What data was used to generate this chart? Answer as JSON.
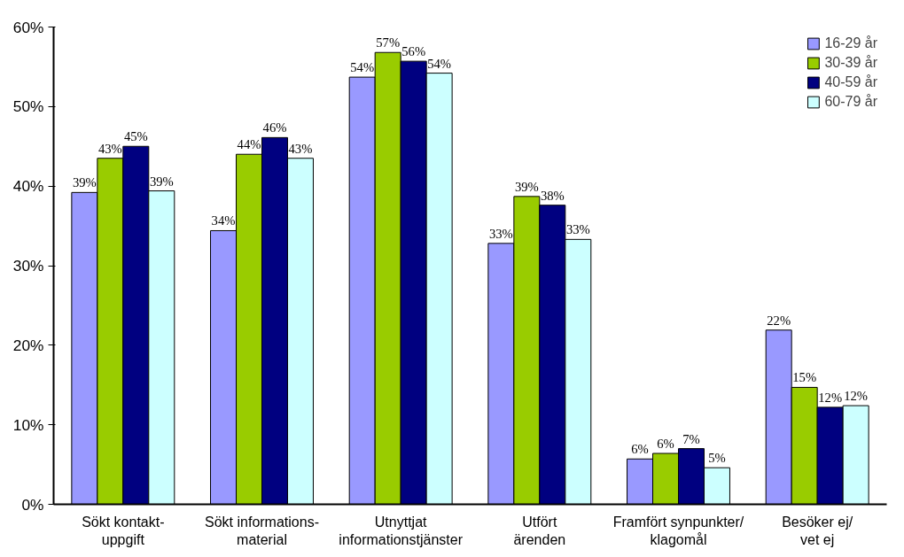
{
  "chart_data": {
    "type": "bar",
    "categories": [
      "Sökt kontakt-\nuppgift",
      "Sökt informations-\nmaterial",
      "Utnyttjat\ninformationstjänster",
      "Utfört\närenden",
      "Framfört synpunkter/\nklagomål",
      "Besöker ej/\nvet ej"
    ],
    "series": [
      {
        "name": "16-29 år",
        "color": "#9999ff",
        "values": [
          39.2,
          34.4,
          53.7,
          32.8,
          5.7,
          21.9
        ],
        "value_labels": [
          "39%",
          "34%",
          "54%",
          "33%",
          "6%",
          "22%"
        ]
      },
      {
        "name": "30-39 år",
        "color": "#99cc00",
        "values": [
          43.5,
          44.0,
          56.8,
          38.7,
          6.4,
          14.7
        ],
        "value_labels": [
          "43%",
          "44%",
          "57%",
          "39%",
          "6%",
          "15%"
        ]
      },
      {
        "name": "40-59 år",
        "color": "#000080",
        "values": [
          45.0,
          46.1,
          55.7,
          37.6,
          7.0,
          12.2
        ],
        "value_labels": [
          "45%",
          "46%",
          "56%",
          "38%",
          "7%",
          "12%"
        ]
      },
      {
        "name": "60-79 år",
        "color": "#ccffff",
        "values": [
          39.4,
          43.5,
          54.2,
          33.3,
          4.6,
          12.4
        ],
        "value_labels": [
          "39%",
          "43%",
          "54%",
          "33%",
          "5%",
          "12%"
        ]
      }
    ],
    "ylim": [
      0,
      60
    ],
    "yticks": [
      {
        "value": 0,
        "label": "0%"
      },
      {
        "value": 10,
        "label": "10%"
      },
      {
        "value": 20,
        "label": "20%"
      },
      {
        "value": 30,
        "label": "30%"
      },
      {
        "value": 40,
        "label": "40%"
      },
      {
        "value": 50,
        "label": "50%"
      },
      {
        "value": 60,
        "label": "60%"
      }
    ],
    "grid": false,
    "legend": "top right"
  }
}
